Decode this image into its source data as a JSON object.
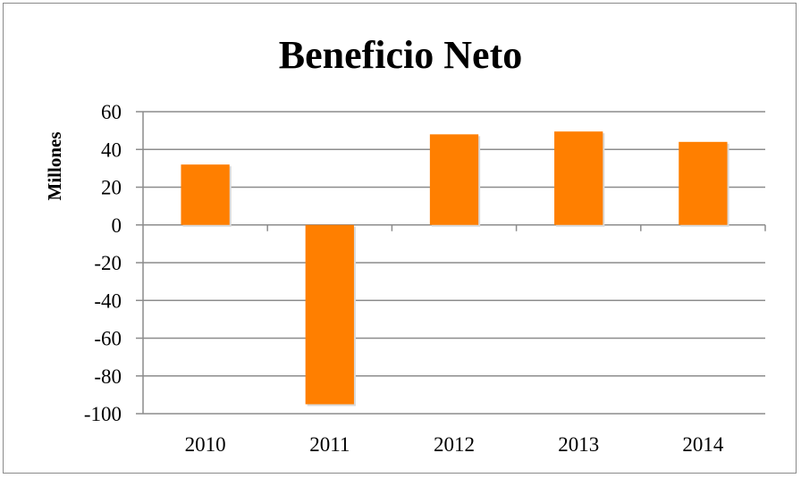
{
  "chart_data": {
    "type": "bar",
    "title": "Beneficio Neto",
    "xlabel": "",
    "ylabel": "Millones",
    "categories": [
      "2010",
      "2011",
      "2012",
      "2013",
      "2014"
    ],
    "values": [
      32,
      -95,
      48,
      49.5,
      44
    ],
    "ylim": [
      -100,
      60
    ],
    "yticks": [
      -100,
      -80,
      -60,
      -40,
      -20,
      0,
      20,
      40,
      60
    ],
    "ytick_labels": [
      "-100",
      "-80",
      "-60",
      "-40",
      "-20",
      "0",
      "20",
      "40",
      "60"
    ],
    "grid": true,
    "legend": "none",
    "bar_color": "#FF7F00",
    "grid_color": "#8C8C8C"
  }
}
